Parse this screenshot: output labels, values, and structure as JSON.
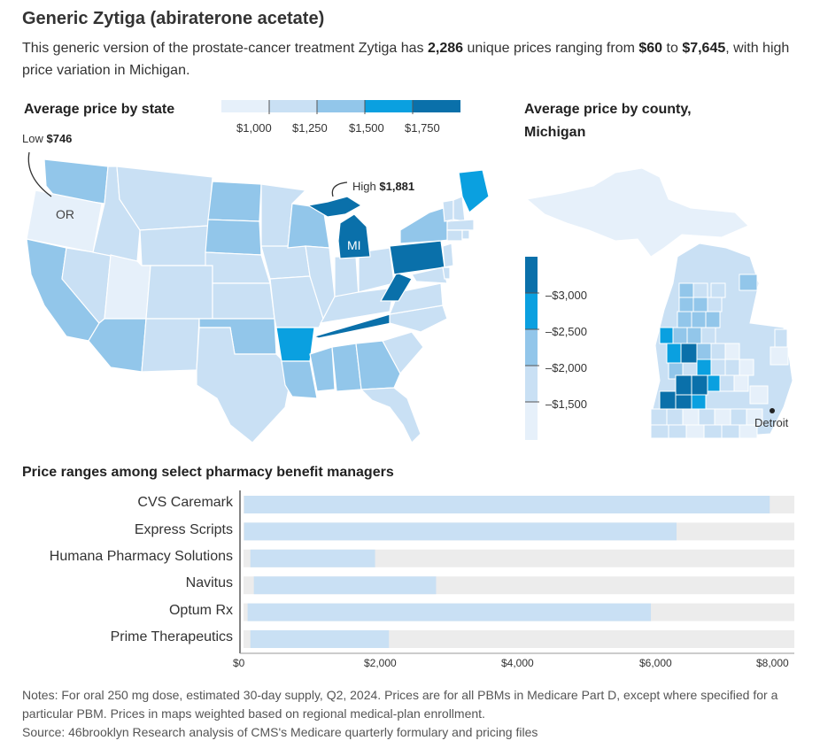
{
  "header": {
    "title": "Generic Zytiga (abiraterone acetate)",
    "subtitle_parts": [
      "This generic version of the prostate-cancer treatment Zytiga has ",
      "2,286",
      " unique prices ranging from ",
      "$60",
      " to ",
      "$7,645",
      ", with high price variation in Michigan."
    ]
  },
  "state_map": {
    "title": "Average price by state",
    "legend_labels": [
      "$1,000",
      "$1,250",
      "$1,500",
      "$1,750"
    ],
    "legend_colors": [
      "#e6f0fa",
      "#c9e0f4",
      "#92c6ea",
      "#0aa0e0",
      "#0a70aa"
    ],
    "low_label": "Low",
    "low_value": "$746",
    "low_state": "OR",
    "high_label": "High",
    "high_value": "$1,881",
    "high_state": "MI"
  },
  "county_map": {
    "title_line1": "Average price by county,",
    "title_line2": "Michigan",
    "legend_labels": [
      "$3,000",
      "$2,500",
      "$2,000",
      "$1,500"
    ],
    "legend_colors": [
      "#0a70aa",
      "#0aa0e0",
      "#92c6ea",
      "#c9e0f4",
      "#e6f0fa"
    ],
    "city_label": "Detroit"
  },
  "bar_section": {
    "title": "Price ranges among select pharmacy benefit managers"
  },
  "chart_data": {
    "type": "bar",
    "title": "Price ranges among select pharmacy benefit managers",
    "categories": [
      "CVS Caremark",
      "Express Scripts",
      "Humana Pharmacy Solutions",
      "Navitus",
      "Optum Rx",
      "Prime Therapeutics"
    ],
    "series": [
      {
        "values": [
          [
            60,
            7645
          ],
          [
            60,
            6300
          ],
          [
            150,
            1950
          ],
          [
            200,
            2830
          ],
          [
            110,
            5930
          ],
          [
            150,
            2150
          ]
        ]
      }
    ],
    "xlim": [
      0,
      8000
    ],
    "x_ticks": [
      "$0",
      "$2,000",
      "$4,000",
      "$6,000",
      "$8,000"
    ],
    "range_color": "#c9e0f4",
    "track_color": "#ececec"
  },
  "notes": {
    "line1": "Notes: For oral 250 mg dose, estimated 30-day supply, Q2, 2024. Prices are for all PBMs in Medicare Part D, except where specified for a particular PBM. Prices in maps weighted based on regional medical-plan enrollment.",
    "line2": "Source: 46brooklyn Research analysis of CMS's Medicare quarterly formulary and pricing files"
  }
}
